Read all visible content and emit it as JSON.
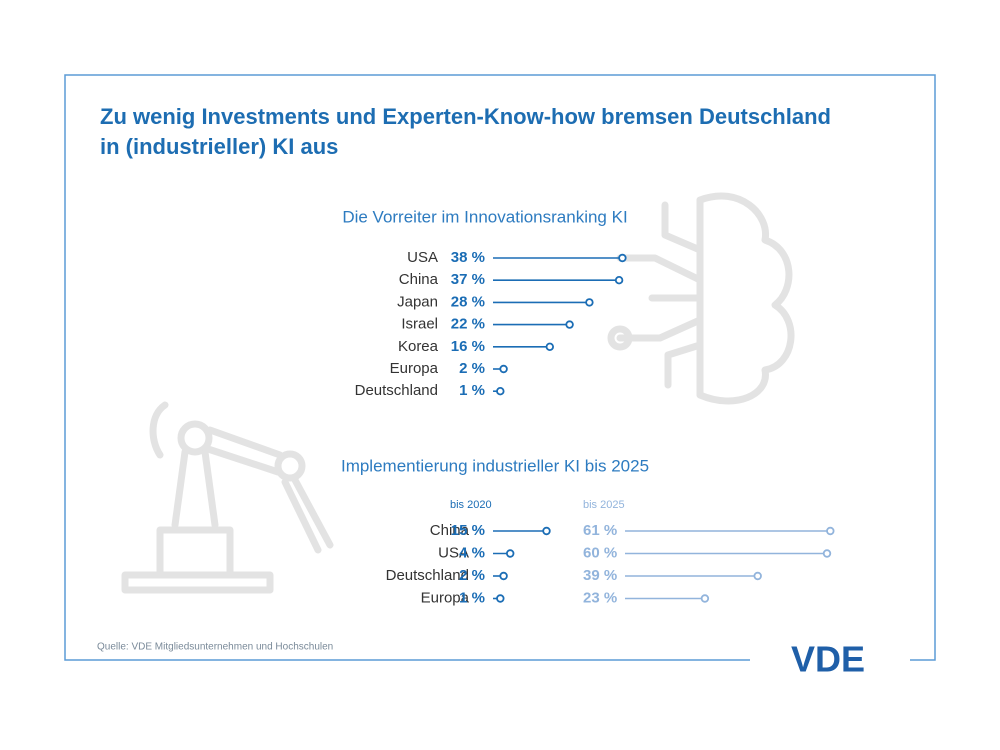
{
  "title": [
    "Zu wenig Investments und Experten-Know-how bremsen Deutschland",
    "in (industrieller) KI aus"
  ],
  "source": "Quelle: VDE Mitgliedsunternehmen und Hochschulen",
  "logo": "VDE",
  "chart_data": [
    {
      "type": "lollipop",
      "title": "Die Vorreiter im Innovationsranking KI",
      "categories": [
        "USA",
        "China",
        "Japan",
        "Israel",
        "Korea",
        "Europa",
        "Deutschland"
      ],
      "values": [
        38,
        37,
        28,
        22,
        16,
        2,
        1
      ],
      "value_labels": [
        "38 %",
        "37 %",
        "28 %",
        "22 %",
        "16 %",
        "2 %",
        "1 %"
      ],
      "color": "#1b6db5"
    },
    {
      "type": "lollipop",
      "title": "Implementierung industrieller KI bis 2025",
      "categories": [
        "China",
        "USA",
        "Deutschland",
        "Europa"
      ],
      "series": [
        {
          "name": "bis 2020",
          "color": "#1b6db5",
          "values": [
            15,
            4,
            2,
            1
          ],
          "value_labels": [
            "15 %",
            "4 %",
            "2 %",
            "1 %"
          ]
        },
        {
          "name": "bis 2025",
          "color": "#92b4dc",
          "values": [
            61,
            60,
            39,
            23
          ],
          "value_labels": [
            "61 %",
            "60 %",
            "39 %",
            "23 %"
          ]
        }
      ]
    }
  ]
}
